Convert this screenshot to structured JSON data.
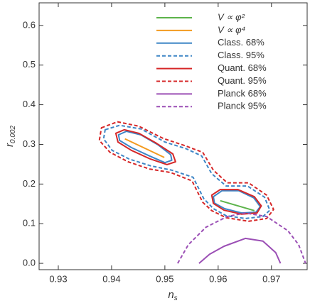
{
  "chart_data": {
    "type": "line",
    "x_label": {
      "text": "n",
      "sub": "s"
    },
    "y_label": {
      "text": "r",
      "sub": "0.002"
    },
    "xlim": [
      0.9264,
      0.9767
    ],
    "ylim": [
      -0.016,
      0.657
    ],
    "xticks": [
      0.93,
      0.94,
      0.95,
      0.96,
      0.97
    ],
    "yticks": [
      {
        "value": 0,
        "label": "0.0"
      },
      0.1,
      0.2,
      0.3,
      0.4,
      0.5,
      0.6
    ],
    "legend": "top",
    "series": [
      {
        "name": "V ∝ φ²",
        "color": "#5cb34a",
        "dashed": false,
        "closed": false,
        "x": [
          0.9604,
          0.9668
        ],
        "y": [
          0.158,
          0.133
        ]
      },
      {
        "name": "V ∝ φ⁴",
        "color": "#f39a1e",
        "dashed": false,
        "closed": false,
        "x": [
          0.9425,
          0.9499
        ],
        "y": [
          0.314,
          0.267
        ]
      },
      {
        "name": "Class. 68%",
        "color": "#3d85c6",
        "dashed": false,
        "closed": true,
        "x": [
          0.9413,
          0.9428,
          0.9455,
          0.9487,
          0.9511,
          0.9513,
          0.95,
          0.9471,
          0.9437,
          0.9415,
          null,
          0.9591,
          0.9607,
          0.9639,
          0.9667,
          0.9679,
          0.9671,
          0.9644,
          0.9612,
          0.9593
        ],
        "y": [
          0.324,
          0.333,
          0.324,
          0.299,
          0.274,
          0.26,
          0.254,
          0.271,
          0.292,
          0.31,
          null,
          0.168,
          0.183,
          0.183,
          0.165,
          0.143,
          0.129,
          0.127,
          0.138,
          0.152
        ]
      },
      {
        "name": "Class. 95%",
        "color": "#3d85c6",
        "dashed": true,
        "closed": true,
        "x": [
          0.9388,
          0.9415,
          0.9455,
          0.95,
          0.954,
          0.9569,
          0.9588,
          0.9615,
          0.9655,
          0.9687,
          0.9697,
          0.9684,
          0.9651,
          0.9615,
          0.9591,
          0.9573,
          0.9553,
          0.9513,
          0.9473,
          0.9433,
          0.9401,
          0.9385
        ],
        "y": [
          0.337,
          0.348,
          0.339,
          0.306,
          0.289,
          0.271,
          0.226,
          0.195,
          0.195,
          0.167,
          0.134,
          0.118,
          0.113,
          0.12,
          0.138,
          0.163,
          0.217,
          0.235,
          0.246,
          0.263,
          0.285,
          0.314
        ]
      },
      {
        "name": "Quant. 68%",
        "color": "#d62728",
        "dashed": false,
        "closed": true,
        "x": [
          0.9408,
          0.9424,
          0.9451,
          0.9484,
          0.9515,
          0.952,
          0.9504,
          0.9473,
          0.9437,
          0.9412,
          null,
          0.9588,
          0.9604,
          0.9637,
          0.9668,
          0.9681,
          0.9673,
          0.9644,
          0.9611,
          0.9591
        ],
        "y": [
          0.328,
          0.337,
          0.328,
          0.303,
          0.276,
          0.256,
          0.249,
          0.263,
          0.285,
          0.306,
          null,
          0.172,
          0.186,
          0.186,
          0.168,
          0.145,
          0.127,
          0.124,
          0.134,
          0.151
        ]
      },
      {
        "name": "Quant. 95%",
        "color": "#d62728",
        "dashed": true,
        "closed": true,
        "x": [
          0.9381,
          0.9411,
          0.9451,
          0.9497,
          0.9537,
          0.9571,
          0.9591,
          0.9617,
          0.9657,
          0.9691,
          0.9704,
          0.9691,
          0.9657,
          0.9615,
          0.9588,
          0.9571,
          0.9551,
          0.9511,
          0.9471,
          0.9431,
          0.9397,
          0.9377
        ],
        "y": [
          0.342,
          0.357,
          0.346,
          0.315,
          0.297,
          0.28,
          0.235,
          0.203,
          0.203,
          0.172,
          0.136,
          0.113,
          0.106,
          0.115,
          0.133,
          0.154,
          0.208,
          0.229,
          0.238,
          0.256,
          0.28,
          0.31
        ]
      },
      {
        "name": "Planck 68%",
        "color": "#9b4fb5",
        "dashed": false,
        "closed": false,
        "x": [
          0.9564,
          0.9584,
          0.9611,
          0.9651,
          0.9684,
          0.9708,
          0.9717
        ],
        "y": [
          0,
          0.023,
          0.043,
          0.063,
          0.056,
          0.027,
          0
        ]
      },
      {
        "name": "Planck 95%",
        "color": "#9b4fb5",
        "dashed": true,
        "closed": false,
        "x": [
          0.9524,
          0.9544,
          0.9577,
          0.9617,
          0.9651,
          0.9691,
          0.9731,
          0.9751,
          0.9764
        ],
        "y": [
          0,
          0.047,
          0.091,
          0.118,
          0.127,
          0.118,
          0.082,
          0.047,
          0
        ]
      }
    ]
  }
}
